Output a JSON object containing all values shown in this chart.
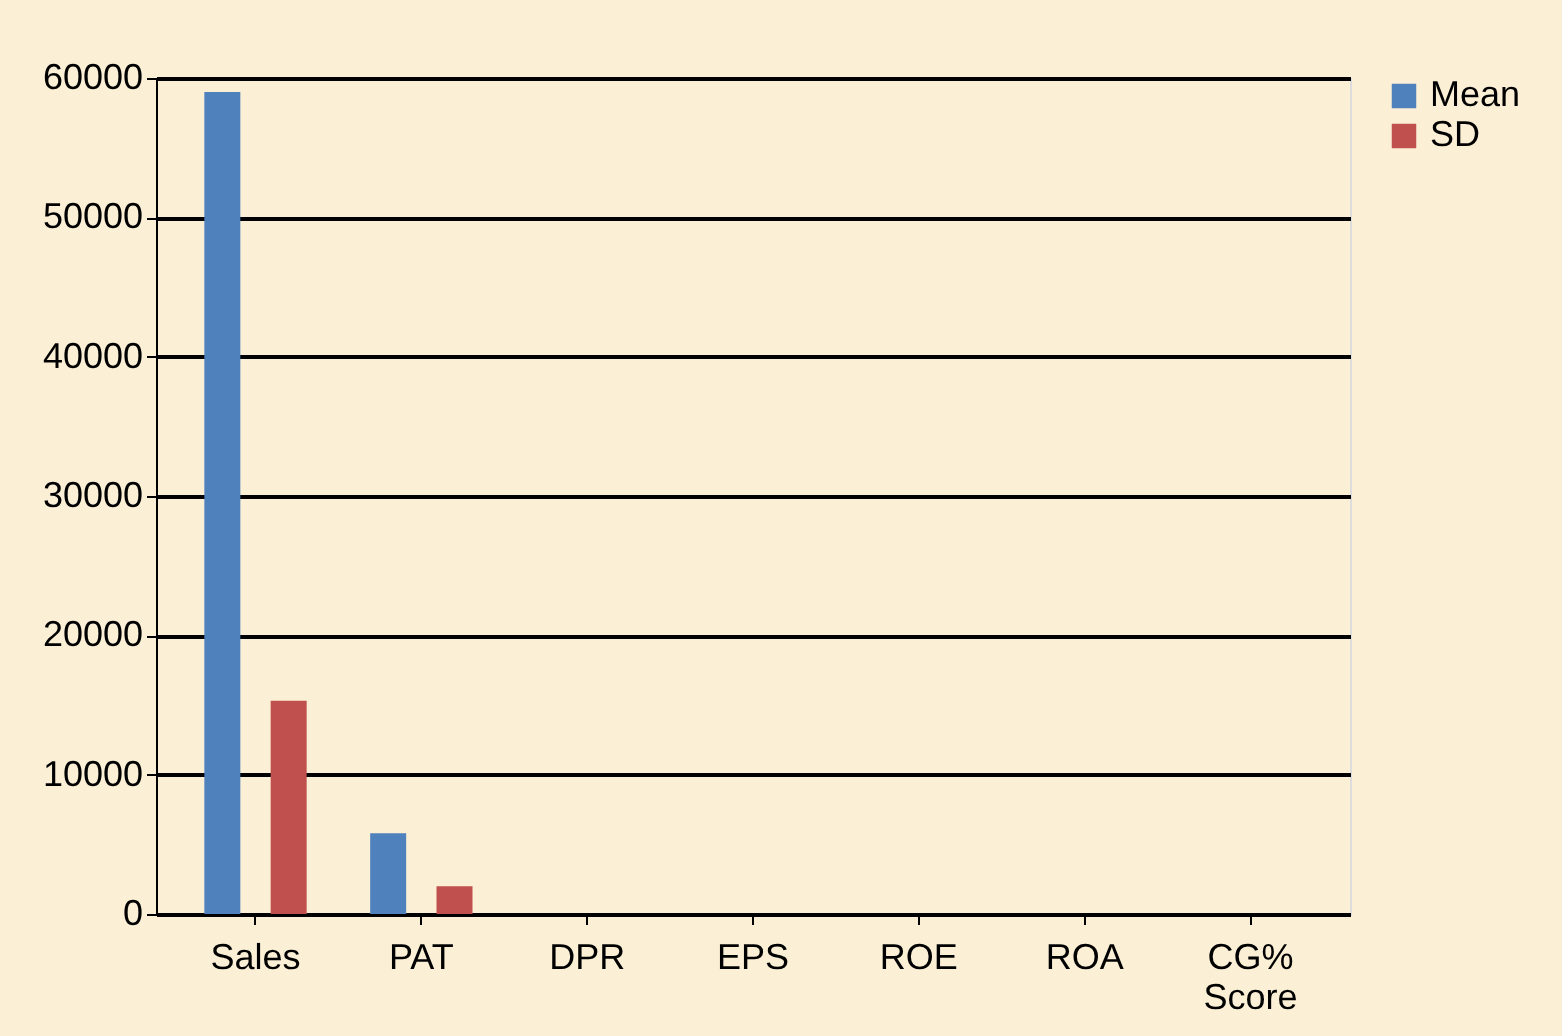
{
  "chart_data": {
    "type": "bar",
    "categories": [
      "Sales",
      "PAT",
      "DPR",
      "EPS",
      "ROE",
      "ROA",
      "CG% Score"
    ],
    "series": [
      {
        "name": "Mean",
        "color": "#4f81bd",
        "values": [
          59000,
          5800,
          0,
          0,
          0,
          0,
          0
        ]
      },
      {
        "name": "SD",
        "color": "#c0504d",
        "values": [
          15300,
          2000,
          0,
          0,
          0,
          0,
          0
        ]
      }
    ],
    "ylim": [
      0,
      60000
    ],
    "yticks": [
      0,
      10000,
      20000,
      30000,
      40000,
      50000,
      60000
    ],
    "grid": "y",
    "legend": "right"
  }
}
